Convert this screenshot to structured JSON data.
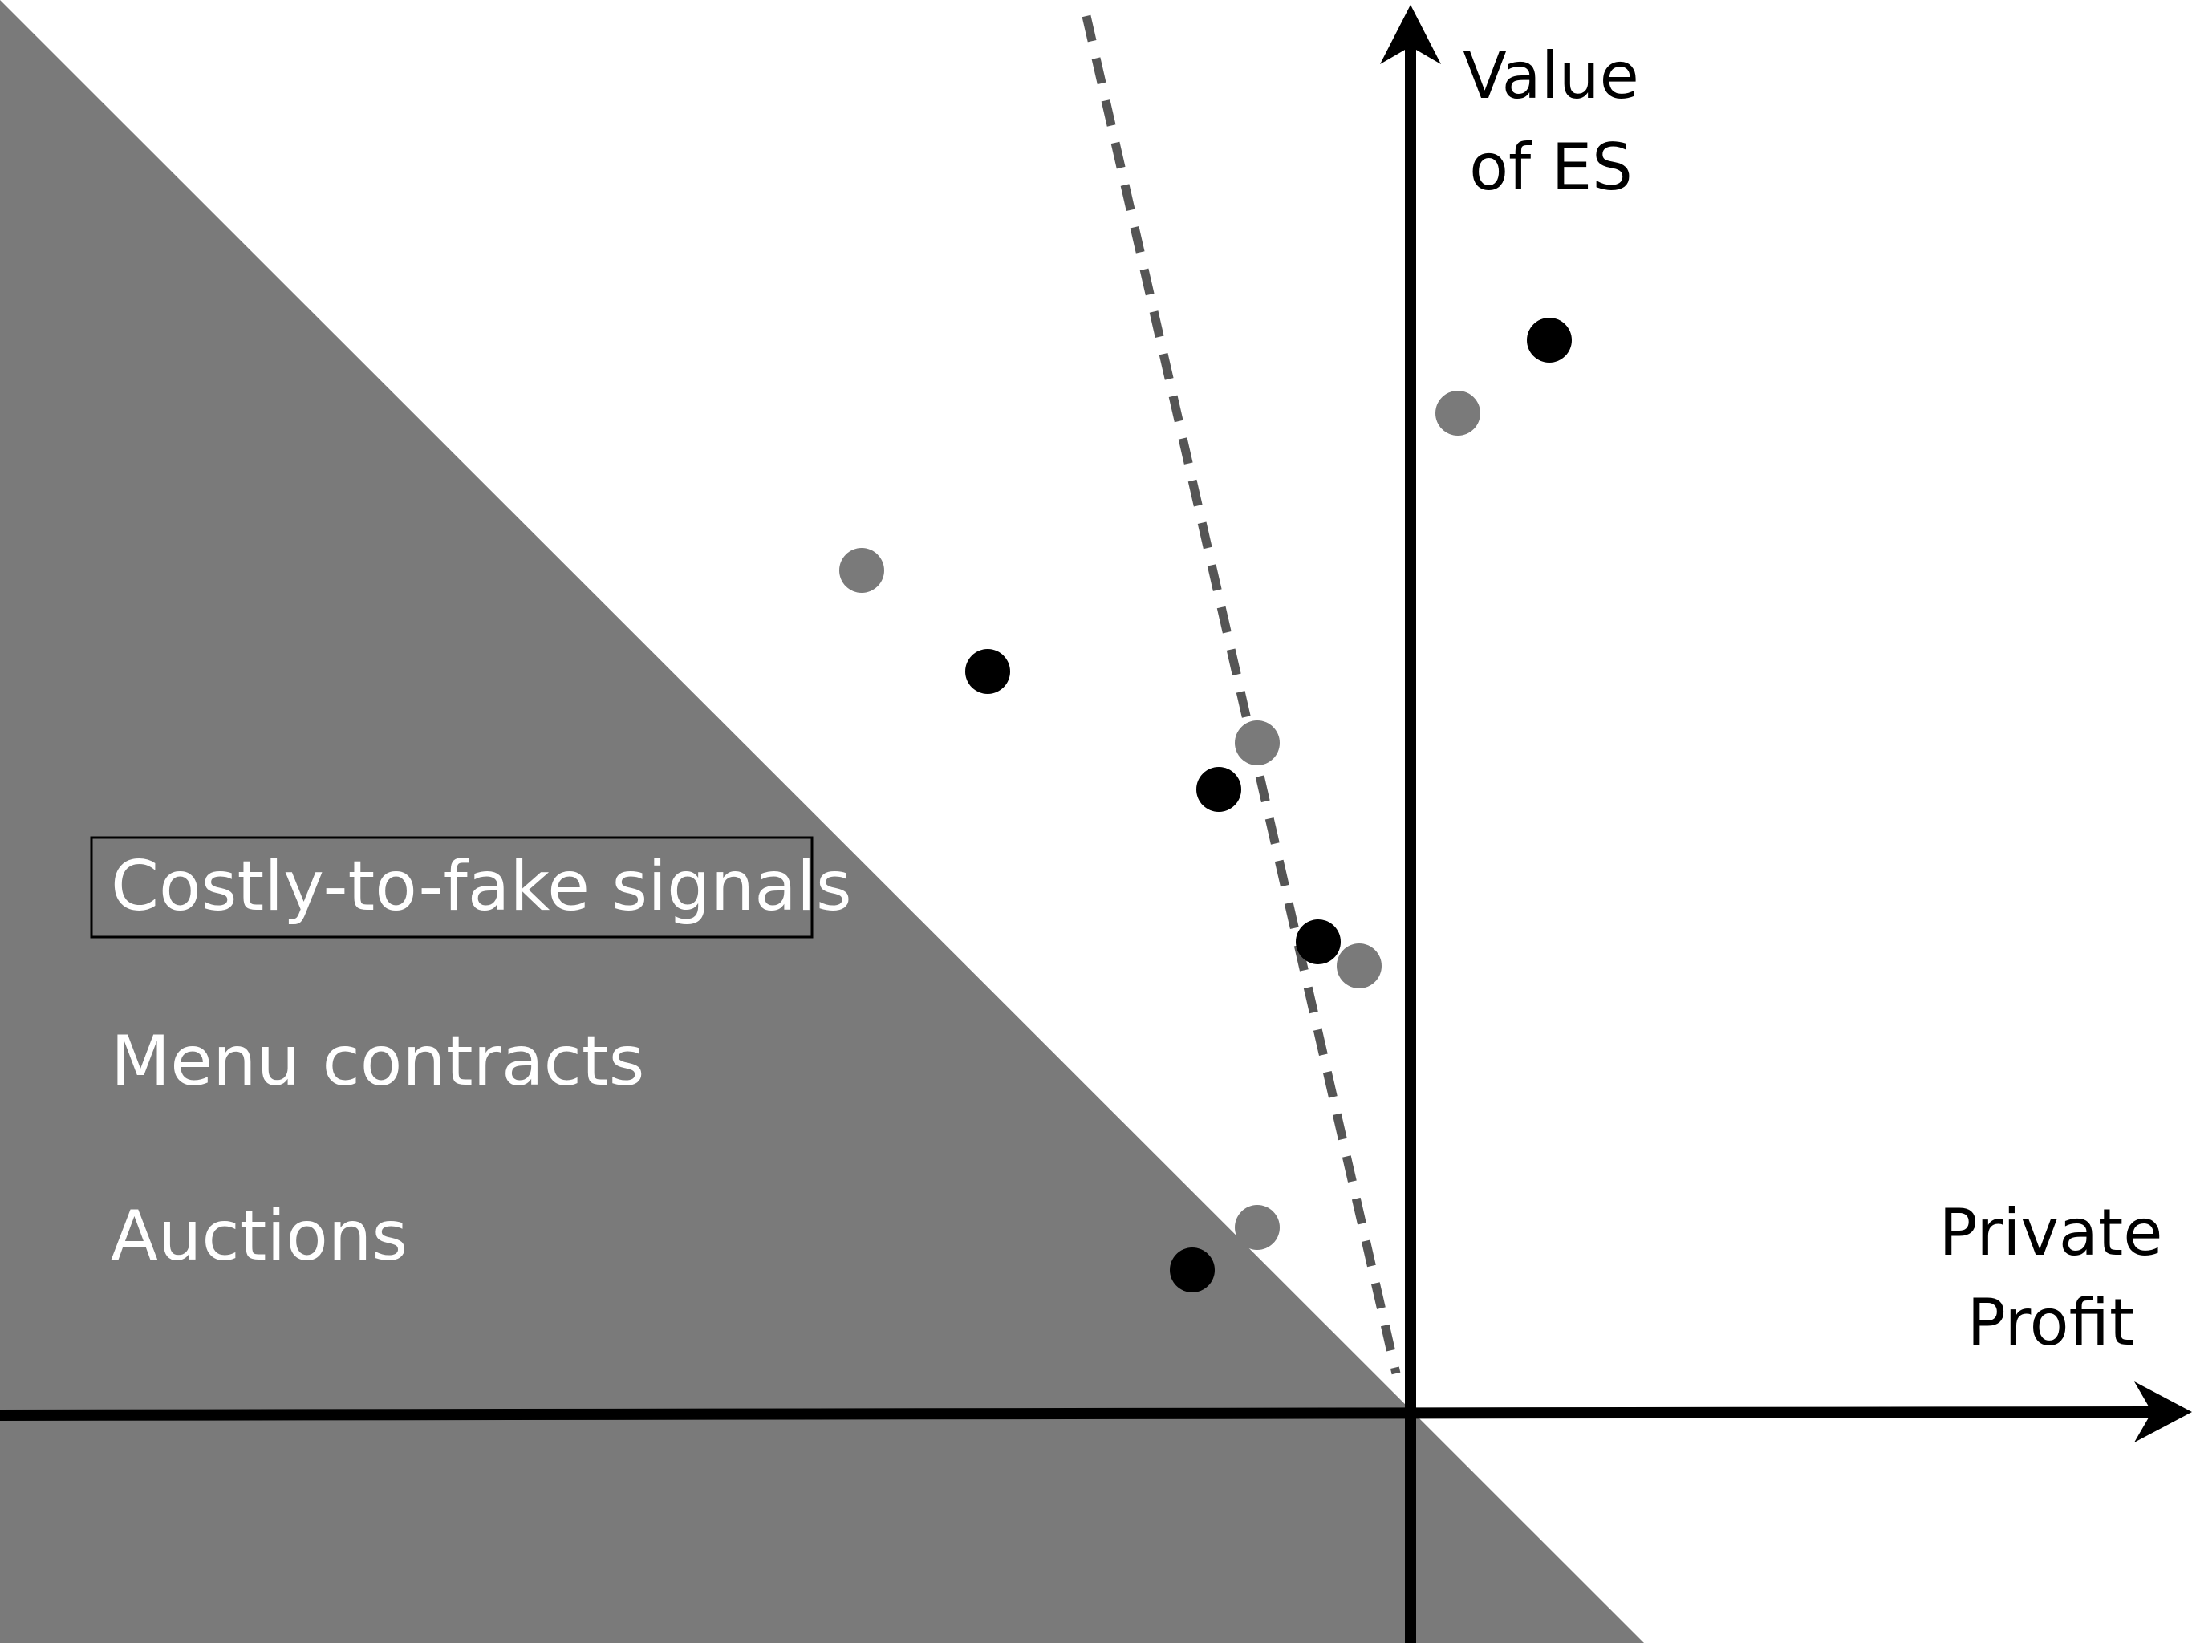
{
  "axes": {
    "y_label_line1": "Value",
    "y_label_line2": "of ES",
    "x_label_line1": "Private",
    "x_label_line2": "Profit"
  },
  "region_labels": {
    "costly_signals": "Costly-to-fake signals",
    "menu_contracts": "Menu contracts",
    "auctions": "Auctions"
  },
  "colors": {
    "shaded_region": "#7a7a7a",
    "axis": "#000000",
    "dashed_line": "#555555",
    "dot_black": "#000000",
    "dot_gray": "#7a7a7a",
    "label_on_shade": "#ffffff",
    "label_on_white": "#000000"
  }
}
